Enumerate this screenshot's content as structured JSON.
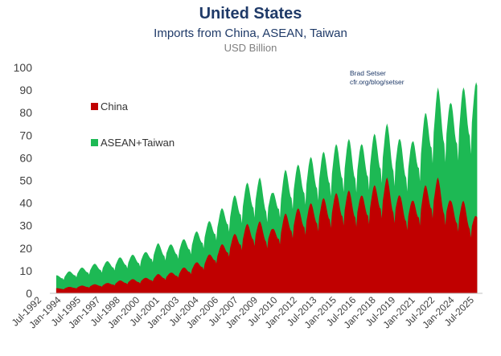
{
  "title": "United States",
  "subtitle": "Imports from China, ASEAN, Taiwan",
  "units": "USD Billion",
  "credit": {
    "name": "Brad Setser",
    "url": "cfr.org/blog/setser"
  },
  "colors": {
    "china": "#c00000",
    "asean_taiwan": "#1db954",
    "title": "#1f3a68",
    "axis_text": "#404040"
  },
  "chart_data": {
    "type": "area",
    "stacked": true,
    "title": "United States",
    "subtitle": "Imports from China, ASEAN, Taiwan",
    "ylabel": "USD Billion",
    "ylim": [
      0,
      100
    ],
    "yticks": [
      0,
      10,
      20,
      30,
      40,
      50,
      60,
      70,
      80,
      90,
      100
    ],
    "xlim": [
      "1992-01",
      "2025-12"
    ],
    "grid": false,
    "legend_position": "upper-left",
    "x_tick_labels": [
      "Jul-1992",
      "Jan-1994",
      "Jul-1995",
      "Jan-1997",
      "Jul-1998",
      "Jan-2000",
      "Jul-2001",
      "Jan-2003",
      "Jul-2004",
      "Jan-2006",
      "Jul-2007",
      "Jan-2009",
      "Jul-2010",
      "Jan-2012",
      "Jul-2013",
      "Jan-2015",
      "Jul-2016",
      "Jan-2018",
      "Jul-2019",
      "Jan-2021",
      "Jul-2022",
      "Jan-2024",
      "Jul-2025"
    ],
    "x": [
      "1992",
      "1993",
      "1994",
      "1995",
      "1996",
      "1997",
      "1998",
      "1999",
      "2000",
      "2001",
      "2002",
      "2003",
      "2004",
      "2005",
      "2006",
      "2007",
      "2008",
      "2009",
      "2010",
      "2011",
      "2012",
      "2013",
      "2014",
      "2015",
      "2016",
      "2017",
      "2018",
      "2019",
      "2020",
      "2021",
      "2022",
      "2023",
      "2024",
      "2025"
    ],
    "series": [
      {
        "name": "China",
        "color": "#c00000",
        "values": [
          2,
          2.5,
          3,
          3.5,
          4,
          5,
          5.5,
          6,
          7.5,
          8,
          10,
          12,
          15,
          19,
          23,
          27,
          28,
          25,
          31,
          33,
          35,
          37,
          39,
          40,
          38,
          42,
          45,
          38,
          36,
          42,
          45,
          36,
          36,
          30
        ]
      },
      {
        "name": "ASEAN+Taiwan",
        "color": "#1db954",
        "values": [
          5,
          6,
          7,
          8,
          8.5,
          9,
          9.5,
          10,
          12,
          11,
          11,
          12,
          13,
          14,
          15,
          16,
          17,
          14,
          17,
          17,
          18,
          18,
          19,
          20,
          20,
          20,
          21,
          22,
          23,
          28,
          35,
          38,
          44,
          52
        ]
      }
    ]
  }
}
